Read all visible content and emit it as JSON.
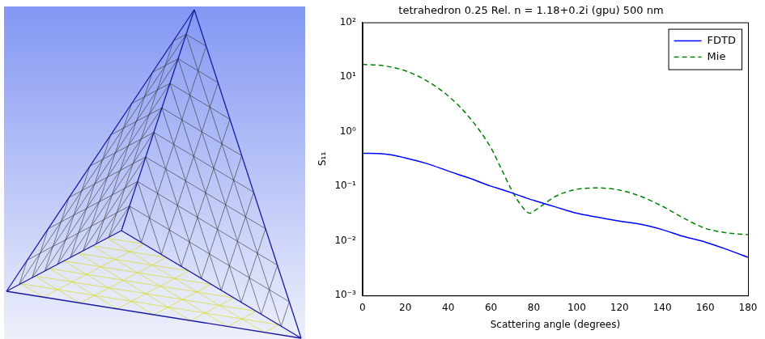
{
  "chart_data": {
    "type": "line",
    "title": "tetrahedron 0.25 Rel. n = 1.18+0.2i (gpu) 500 nm",
    "xlabel": "Scattering angle (degrees)",
    "ylabel": "S₁₁",
    "x": [
      0,
      10,
      20,
      30,
      40,
      50,
      60,
      65,
      70,
      75,
      78,
      80,
      85,
      90,
      100,
      110,
      120,
      130,
      140,
      150,
      160,
      170,
      180
    ],
    "series": [
      {
        "name": "FDTD",
        "color": "#0000ff",
        "line_style": "solid",
        "values": [
          0.4,
          0.39,
          0.33,
          0.26,
          0.19,
          0.14,
          0.1,
          0.087,
          0.075,
          0.064,
          0.058,
          0.055,
          0.048,
          0.042,
          0.032,
          0.027,
          0.023,
          0.02,
          0.016,
          0.012,
          0.0095,
          0.007,
          0.005
        ]
      },
      {
        "name": "Mie",
        "color": "#008000",
        "line_style": "dashed",
        "values": [
          17,
          16,
          13,
          8.5,
          4.5,
          1.8,
          0.5,
          0.2,
          0.08,
          0.04,
          0.032,
          0.035,
          0.048,
          0.065,
          0.088,
          0.093,
          0.085,
          0.065,
          0.043,
          0.026,
          0.017,
          0.014,
          0.013
        ]
      }
    ],
    "xlim": [
      0,
      180
    ],
    "xticks": [
      0,
      20,
      40,
      60,
      80,
      100,
      120,
      140,
      160,
      180
    ],
    "ylim": [
      0.001,
      100
    ],
    "yticks": [
      {
        "value": 0.001,
        "label": "10⁻³"
      },
      {
        "value": 0.01,
        "label": "10⁻²"
      },
      {
        "value": 0.1,
        "label": "10⁻¹"
      },
      {
        "value": 1,
        "label": "10⁰"
      },
      {
        "value": 10,
        "label": "10¹"
      },
      {
        "value": 100,
        "label": "10²"
      }
    ],
    "log": "y",
    "grid": false,
    "legend": "upper right"
  }
}
